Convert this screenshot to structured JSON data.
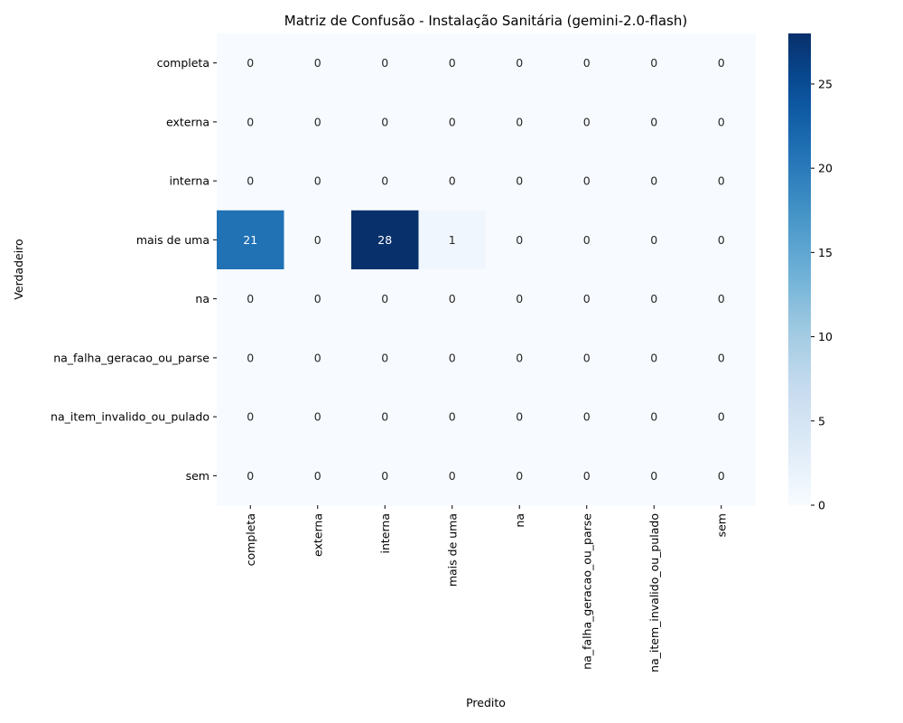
{
  "chart_data": {
    "type": "heatmap",
    "title": "Matriz de Confusão - Instalação Sanitária (gemini-2.0-flash)",
    "xlabel": "Predito",
    "ylabel": "Verdadeiro",
    "x_categories": [
      "completa",
      "externa",
      "interna",
      "mais de uma",
      "na",
      "na_falha_geracao_ou_parse",
      "na_item_invalido_ou_pulado",
      "sem"
    ],
    "y_categories": [
      "completa",
      "externa",
      "interna",
      "mais de uma",
      "na",
      "na_falha_geracao_ou_parse",
      "na_item_invalido_ou_pulado",
      "sem"
    ],
    "values": [
      [
        0,
        0,
        0,
        0,
        0,
        0,
        0,
        0
      ],
      [
        0,
        0,
        0,
        0,
        0,
        0,
        0,
        0
      ],
      [
        0,
        0,
        0,
        0,
        0,
        0,
        0,
        0
      ],
      [
        21,
        0,
        28,
        1,
        0,
        0,
        0,
        0
      ],
      [
        0,
        0,
        0,
        0,
        0,
        0,
        0,
        0
      ],
      [
        0,
        0,
        0,
        0,
        0,
        0,
        0,
        0
      ],
      [
        0,
        0,
        0,
        0,
        0,
        0,
        0,
        0
      ],
      [
        0,
        0,
        0,
        0,
        0,
        0,
        0,
        0
      ]
    ],
    "colorbar": {
      "colormap": "Blues",
      "min": 0,
      "max": 28,
      "ticks": [
        0,
        5,
        10,
        15,
        20,
        25
      ]
    }
  }
}
